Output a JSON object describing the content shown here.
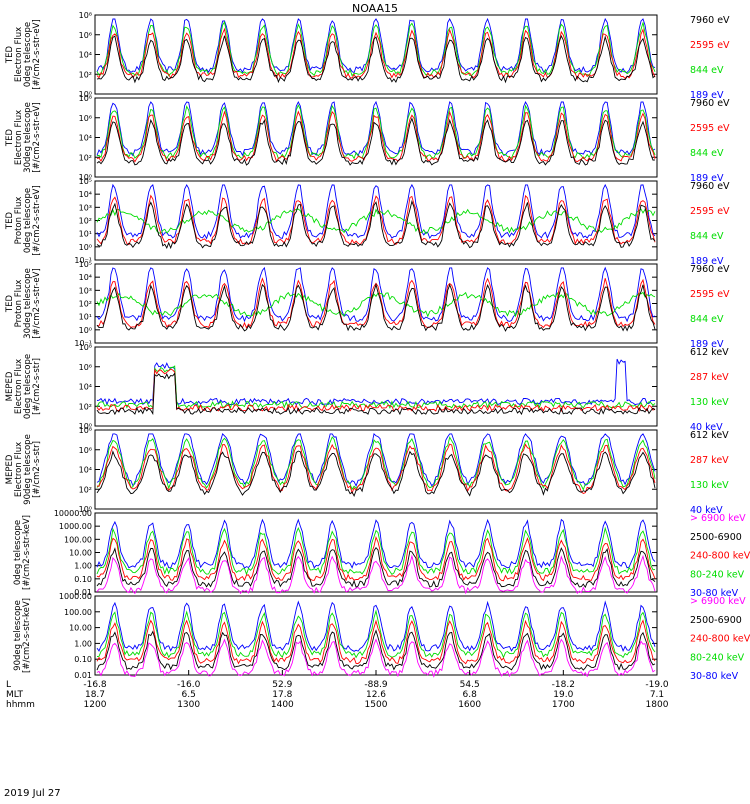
{
  "title": "NOAA15",
  "date_label": "2019 Jul 27",
  "x_axis": {
    "row_labels": [
      "L",
      "MLT",
      "hhmm"
    ],
    "ticks": [
      {
        "L": "-16.8",
        "MLT": "18.7",
        "hhmm": "1200"
      },
      {
        "L": "-16.0",
        "MLT": "6.5",
        "hhmm": "1300"
      },
      {
        "L": "52.9",
        "MLT": "17.8",
        "hhmm": "1400"
      },
      {
        "L": "-88.9",
        "MLT": "12.6",
        "hhmm": "1500"
      },
      {
        "L": "54.5",
        "MLT": "6.8",
        "hhmm": "1600"
      },
      {
        "L": "-18.2",
        "MLT": "19.0",
        "hhmm": "1700"
      },
      {
        "L": "-19.0",
        "MLT": "7.1",
        "hhmm": "1800"
      }
    ]
  },
  "colors": {
    "black": "#000000",
    "red": "#ff0000",
    "green": "#00dd00",
    "blue": "#0000ff",
    "magenta": "#ff00ff"
  },
  "panels": [
    {
      "ylabel": [
        "TED",
        "Electron Flux",
        "0deg telescope",
        "[#/cm2-s-str-eV]"
      ],
      "scale": "log",
      "ylim": [
        1,
        100000000
      ],
      "yticks": [
        "10⁰",
        "10²",
        "10⁴",
        "10⁶",
        "10⁸"
      ],
      "legend": [
        {
          "label": "7960 eV",
          "color": "#000000"
        },
        {
          "label": "2595 eV",
          "color": "#ff0000"
        },
        {
          "label": "844 eV",
          "color": "#00dd00"
        },
        {
          "label": "189 eV",
          "color": "#0000ff"
        }
      ]
    },
    {
      "ylabel": [
        "TED",
        "Electron Flux",
        "30deg telescope",
        "[#/cm2-s-str-eV]"
      ],
      "scale": "log",
      "ylim": [
        1,
        100000000
      ],
      "yticks": [
        "10⁰",
        "10²",
        "10⁴",
        "10⁶",
        "10⁸"
      ],
      "legend": [
        {
          "label": "7960 eV",
          "color": "#000000"
        },
        {
          "label": "2595 eV",
          "color": "#ff0000"
        },
        {
          "label": "844 eV",
          "color": "#00dd00"
        },
        {
          "label": "189 eV",
          "color": "#0000ff"
        }
      ]
    },
    {
      "ylabel": [
        "TED",
        "Proton Flux",
        "0deg telescope",
        "[#/cm2-s-str-eV]"
      ],
      "scale": "log",
      "ylim": [
        0.1,
        100000
      ],
      "yticks": [
        "10⁻¹",
        "10⁰",
        "10¹",
        "10²",
        "10³",
        "10⁴",
        "10⁵"
      ],
      "legend": [
        {
          "label": "7960 eV",
          "color": "#000000"
        },
        {
          "label": "2595 eV",
          "color": "#ff0000"
        },
        {
          "label": "844 eV",
          "color": "#00dd00"
        },
        {
          "label": "189 eV",
          "color": "#0000ff"
        }
      ]
    },
    {
      "ylabel": [
        "TED",
        "Proton Flux",
        "30deg telescope",
        "[#/cm2-s-str-eV]"
      ],
      "scale": "log",
      "ylim": [
        0.1,
        100000
      ],
      "yticks": [
        "10⁻¹",
        "10⁰",
        "10¹",
        "10²",
        "10³",
        "10⁴",
        "10⁵"
      ],
      "legend": [
        {
          "label": "7960 eV",
          "color": "#000000"
        },
        {
          "label": "2595 eV",
          "color": "#ff0000"
        },
        {
          "label": "844 eV",
          "color": "#00dd00"
        },
        {
          "label": "189 eV",
          "color": "#0000ff"
        }
      ]
    },
    {
      "ylabel": [
        "MEPED",
        "Electron Flux",
        "0deg telescope",
        "[#/cm2-s-str]"
      ],
      "scale": "log",
      "ylim": [
        1,
        100000000
      ],
      "yticks": [
        "10⁰",
        "10²",
        "10⁴",
        "10⁶",
        "10⁸"
      ],
      "legend": [
        {
          "label": "612 keV",
          "color": "#000000"
        },
        {
          "label": "287 keV",
          "color": "#ff0000"
        },
        {
          "label": "130 keV",
          "color": "#00dd00"
        },
        {
          "label": "40 keV",
          "color": "#0000ff"
        }
      ]
    },
    {
      "ylabel": [
        "MEPED",
        "Electron Flux",
        "90deg telescope",
        "[#/cm2-s-str]"
      ],
      "scale": "log",
      "ylim": [
        1,
        100000000
      ],
      "yticks": [
        "10⁰",
        "10²",
        "10⁴",
        "10⁶",
        "10⁸"
      ],
      "legend": [
        {
          "label": "612 keV",
          "color": "#000000"
        },
        {
          "label": "287 keV",
          "color": "#ff0000"
        },
        {
          "label": "130 keV",
          "color": "#00dd00"
        },
        {
          "label": "40 keV",
          "color": "#0000ff"
        }
      ]
    },
    {
      "ylabel": [
        "0deg telescope",
        "[#/cm2-s-str-keV]"
      ],
      "scale": "log",
      "ylim": [
        0.01,
        10000
      ],
      "yticks": [
        "0.01",
        "0.10",
        "1.00",
        "10.00",
        "100.00",
        "1000.00",
        "10000.00"
      ],
      "legend": [
        {
          "label": "> 6900 keV",
          "color": "#ff00ff"
        },
        {
          "label": "2500-6900",
          "color": "#000000"
        },
        {
          "label": "240-800 keV",
          "color": "#ff0000"
        },
        {
          "label": "80-240 keV",
          "color": "#00dd00"
        },
        {
          "label": "30-80 keV",
          "color": "#0000ff"
        }
      ]
    },
    {
      "ylabel": [
        "90deg telescope",
        "[#/cm2-s-str-keV]"
      ],
      "scale": "log",
      "ylim": [
        0.01,
        1000
      ],
      "yticks": [
        "0.01",
        "0.10",
        "1.00",
        "10.00",
        "100.00",
        "1000.00"
      ],
      "legend": [
        {
          "label": "> 6900 keV",
          "color": "#ff00ff"
        },
        {
          "label": "2500-6900",
          "color": "#000000"
        },
        {
          "label": "240-800 keV",
          "color": "#ff0000"
        },
        {
          "label": "80-240 keV",
          "color": "#00dd00"
        },
        {
          "label": "30-80 keV",
          "color": "#0000ff"
        }
      ]
    }
  ],
  "chart_data": {
    "type": "line",
    "title": "NOAA15",
    "x": {
      "type": "time",
      "unit": "hhmm",
      "range": [
        "1200",
        "1800"
      ],
      "tick_labels": [
        "1200",
        "1300",
        "1400",
        "1500",
        "1600",
        "1700",
        "1800"
      ]
    },
    "panel_count": 8,
    "series_per_panel": [
      [
        "7960 eV",
        "2595 eV",
        "844 eV",
        "189 eV"
      ],
      [
        "7960 eV",
        "2595 eV",
        "844 eV",
        "189 eV"
      ],
      [
        "7960 eV",
        "2595 eV",
        "844 eV",
        "189 eV"
      ],
      [
        "7960 eV",
        "2595 eV",
        "844 eV",
        "189 eV"
      ],
      [
        "612 keV",
        "287 keV",
        "130 keV",
        "40 keV"
      ],
      [
        "612 keV",
        "287 keV",
        "130 keV",
        "40 keV"
      ],
      [
        "> 6900 keV",
        "2500-6900",
        "240-800 keV",
        "80-240 keV",
        "30-80 keV"
      ],
      [
        "> 6900 keV",
        "2500-6900",
        "240-800 keV",
        "80-240 keV",
        "30-80 keV"
      ]
    ],
    "peak_passes_hhmm": [
      "1211",
      "1235",
      "1258",
      "1322",
      "1347",
      "1410",
      "1432",
      "1500",
      "1523",
      "1548",
      "1612",
      "1637",
      "1700",
      "1728",
      "1752"
    ]
  }
}
